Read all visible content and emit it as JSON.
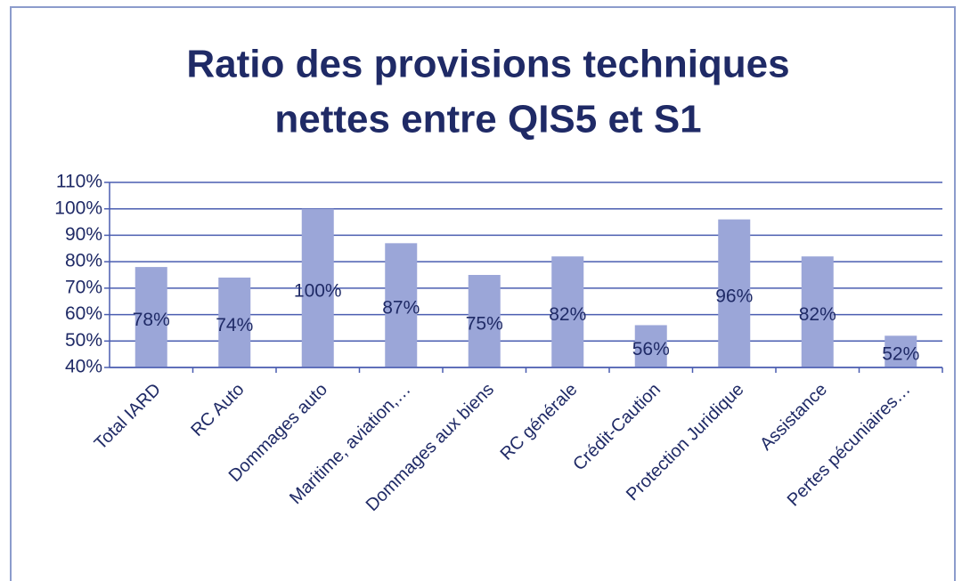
{
  "chart_data": {
    "type": "bar",
    "title": [
      "Ratio des provisions techniques",
      "nettes entre QIS5 et S1"
    ],
    "categories": [
      "Total IARD",
      "RC Auto",
      "Dommages auto",
      "Maritime, aviation,…",
      "Dommages aux biens",
      "RC générale",
      "Crédit-Caution",
      "Protection Juridique",
      "Assistance",
      "Pertes pécuniaires…"
    ],
    "values": [
      78,
      74,
      100,
      87,
      75,
      82,
      56,
      96,
      82,
      52
    ],
    "value_labels": [
      "78%",
      "74%",
      "100%",
      "87%",
      "75%",
      "82%",
      "56%",
      "96%",
      "82%",
      "52%"
    ],
    "color": "#9ba6d8",
    "ylim": [
      40,
      110
    ],
    "yticks": [
      {
        "value": 40,
        "label": "40%"
      },
      {
        "value": 50,
        "label": "50%"
      },
      {
        "value": 60,
        "label": "60%"
      },
      {
        "value": 70,
        "label": "70%"
      },
      {
        "value": 80,
        "label": "80%"
      },
      {
        "value": 90,
        "label": "90%"
      },
      {
        "value": 100,
        "label": "100%"
      },
      {
        "value": 110,
        "label": "110%"
      }
    ],
    "grid": true
  }
}
